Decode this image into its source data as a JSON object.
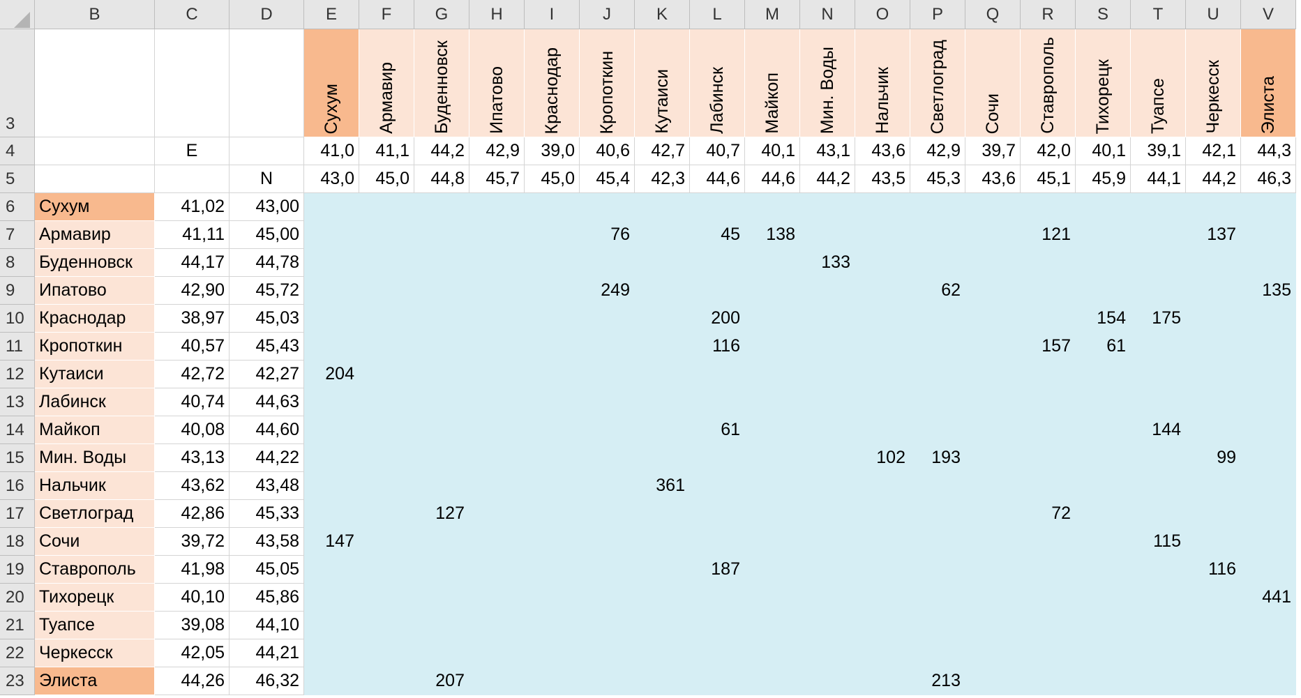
{
  "column_headers": [
    "B",
    "C",
    "D",
    "E",
    "F",
    "G",
    "H",
    "I",
    "J",
    "K",
    "L",
    "M",
    "N",
    "O",
    "P",
    "Q",
    "R",
    "S",
    "T",
    "U",
    "V"
  ],
  "rows": [
    {
      "number": 3,
      "cells": [
        null,
        null,
        null,
        "Сухум",
        "Армавир",
        "Буденновск",
        "Ипатово",
        "Краснодар",
        "Кропоткин",
        "Кутаиси",
        "Лабинск",
        "Майкоп",
        "Мин. Воды",
        "Нальчик",
        "Светлоград",
        "Сочи",
        "Ставрополь",
        "Тихорецк",
        "Туапсе",
        "Черкесск",
        "Элиста"
      ]
    },
    {
      "number": 4,
      "cells": [
        null,
        "E",
        null,
        "41,0",
        "41,1",
        "44,2",
        "42,9",
        "39,0",
        "40,6",
        "42,7",
        "40,7",
        "40,1",
        "43,1",
        "43,6",
        "42,9",
        "39,7",
        "42,0",
        "40,1",
        "39,1",
        "42,1",
        "44,3"
      ]
    },
    {
      "number": 5,
      "cells": [
        null,
        null,
        "N",
        "43,0",
        "45,0",
        "44,8",
        "45,7",
        "45,0",
        "45,4",
        "42,3",
        "44,6",
        "44,6",
        "44,2",
        "43,5",
        "45,3",
        "43,6",
        "45,1",
        "45,9",
        "44,1",
        "44,2",
        "46,3"
      ]
    },
    {
      "number": 6,
      "cells": [
        "Сухум",
        "41,02",
        "43,00",
        null,
        null,
        null,
        null,
        null,
        null,
        null,
        null,
        null,
        null,
        null,
        null,
        null,
        null,
        null,
        null,
        null,
        null
      ]
    },
    {
      "number": 7,
      "cells": [
        "Армавир",
        "41,11",
        "45,00",
        null,
        null,
        null,
        null,
        null,
        "76",
        null,
        "45",
        "138",
        null,
        null,
        null,
        null,
        "121",
        null,
        null,
        "137",
        null
      ]
    },
    {
      "number": 8,
      "cells": [
        "Буденновск",
        "44,17",
        "44,78",
        null,
        null,
        null,
        null,
        null,
        null,
        null,
        null,
        null,
        "133",
        null,
        null,
        null,
        null,
        null,
        null,
        null,
        null
      ]
    },
    {
      "number": 9,
      "cells": [
        "Ипатово",
        "42,90",
        "45,72",
        null,
        null,
        null,
        null,
        null,
        "249",
        null,
        null,
        null,
        null,
        null,
        "62",
        null,
        null,
        null,
        null,
        null,
        "135"
      ]
    },
    {
      "number": 10,
      "cells": [
        "Краснодар",
        "38,97",
        "45,03",
        null,
        null,
        null,
        null,
        null,
        null,
        null,
        "200",
        null,
        null,
        null,
        null,
        null,
        null,
        "154",
        "175",
        null,
        null
      ]
    },
    {
      "number": 11,
      "cells": [
        "Кропоткин",
        "40,57",
        "45,43",
        null,
        null,
        null,
        null,
        null,
        null,
        null,
        "116",
        null,
        null,
        null,
        null,
        null,
        "157",
        "61",
        null,
        null,
        null
      ]
    },
    {
      "number": 12,
      "cells": [
        "Кутаиси",
        "42,72",
        "42,27",
        "204",
        null,
        null,
        null,
        null,
        null,
        null,
        null,
        null,
        null,
        null,
        null,
        null,
        null,
        null,
        null,
        null,
        null
      ]
    },
    {
      "number": 13,
      "cells": [
        "Лабинск",
        "40,74",
        "44,63",
        null,
        null,
        null,
        null,
        null,
        null,
        null,
        null,
        null,
        null,
        null,
        null,
        null,
        null,
        null,
        null,
        null,
        null
      ]
    },
    {
      "number": 14,
      "cells": [
        "Майкоп",
        "40,08",
        "44,60",
        null,
        null,
        null,
        null,
        null,
        null,
        null,
        "61",
        null,
        null,
        null,
        null,
        null,
        null,
        null,
        "144",
        null,
        null
      ]
    },
    {
      "number": 15,
      "cells": [
        "Мин. Воды",
        "43,13",
        "44,22",
        null,
        null,
        null,
        null,
        null,
        null,
        null,
        null,
        null,
        null,
        "102",
        "193",
        null,
        null,
        null,
        null,
        "99",
        null
      ]
    },
    {
      "number": 16,
      "cells": [
        "Нальчик",
        "43,62",
        "43,48",
        null,
        null,
        null,
        null,
        null,
        null,
        "361",
        null,
        null,
        null,
        null,
        null,
        null,
        null,
        null,
        null,
        null,
        null
      ]
    },
    {
      "number": 17,
      "cells": [
        "Светлоград",
        "42,86",
        "45,33",
        null,
        null,
        "127",
        null,
        null,
        null,
        null,
        null,
        null,
        null,
        null,
        null,
        null,
        "72",
        null,
        null,
        null,
        null
      ]
    },
    {
      "number": 18,
      "cells": [
        "Сочи",
        "39,72",
        "43,58",
        "147",
        null,
        null,
        null,
        null,
        null,
        null,
        null,
        null,
        null,
        null,
        null,
        null,
        null,
        null,
        "115",
        null,
        null
      ]
    },
    {
      "number": 19,
      "cells": [
        "Ставрополь",
        "41,98",
        "45,05",
        null,
        null,
        null,
        null,
        null,
        null,
        null,
        "187",
        null,
        null,
        null,
        null,
        null,
        null,
        null,
        null,
        "116",
        null
      ]
    },
    {
      "number": 20,
      "cells": [
        "Тихорецк",
        "40,10",
        "45,86",
        null,
        null,
        null,
        null,
        null,
        null,
        null,
        null,
        null,
        null,
        null,
        null,
        null,
        null,
        null,
        null,
        null,
        "441"
      ]
    },
    {
      "number": 21,
      "cells": [
        "Туапсе",
        "39,08",
        "44,10",
        null,
        null,
        null,
        null,
        null,
        null,
        null,
        null,
        null,
        null,
        null,
        null,
        null,
        null,
        null,
        null,
        null,
        null
      ]
    },
    {
      "number": 22,
      "cells": [
        "Черкесск",
        "42,05",
        "44,21",
        null,
        null,
        null,
        null,
        null,
        null,
        null,
        null,
        null,
        null,
        null,
        null,
        null,
        null,
        null,
        null,
        null,
        null
      ]
    },
    {
      "number": 23,
      "cells": [
        "Элиста",
        "44,26",
        "46,32",
        null,
        null,
        "207",
        null,
        null,
        null,
        null,
        null,
        null,
        null,
        null,
        "213",
        null,
        null,
        null,
        null,
        null,
        null
      ]
    }
  ]
}
